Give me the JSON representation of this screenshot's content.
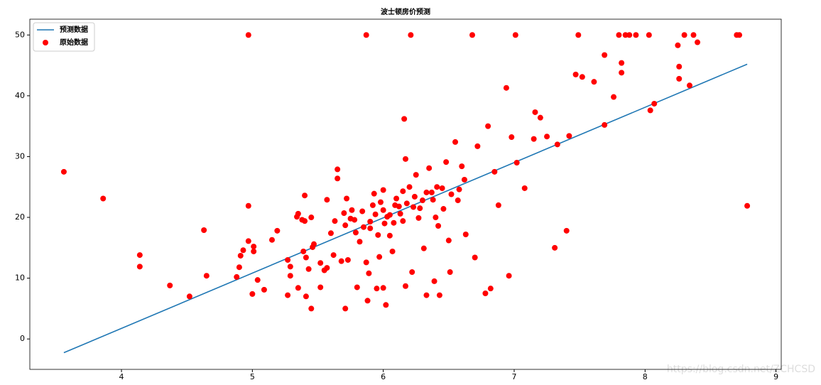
{
  "chart_data": {
    "type": "scatter",
    "title": "波士顿房价预测",
    "xlim": [
      3.3,
      9.04
    ],
    "ylim": [
      -5,
      52.6
    ],
    "xticks": [
      4,
      5,
      6,
      7,
      8,
      9
    ],
    "yticks": [
      0,
      10,
      20,
      30,
      40,
      50
    ],
    "legend": "upper left",
    "series": [
      {
        "name": "预测数据",
        "type": "line",
        "color": "#1f77b4",
        "x": [
          3.56,
          8.78
        ],
        "values": [
          -2.26,
          45.2
        ]
      },
      {
        "name": "原始数据",
        "type": "scatter",
        "color": "#ff0000",
        "x": [
          3.56,
          3.86,
          4.14,
          4.14,
          4.37,
          4.52,
          4.63,
          4.65,
          4.88,
          4.9,
          4.91,
          4.93,
          4.97,
          4.97,
          4.97,
          5.0,
          5.01,
          5.01,
          5.04,
          5.09,
          5.15,
          5.19,
          5.27,
          5.27,
          5.29,
          5.29,
          5.34,
          5.35,
          5.35,
          5.38,
          5.39,
          5.4,
          5.4,
          5.41,
          5.41,
          5.43,
          5.45,
          5.45,
          5.46,
          5.47,
          5.52,
          5.52,
          5.55,
          5.57,
          5.57,
          5.6,
          5.62,
          5.63,
          5.65,
          5.65,
          5.68,
          5.7,
          5.71,
          5.71,
          5.72,
          5.73,
          5.76,
          5.78,
          5.8,
          5.82,
          5.85,
          5.87,
          5.87,
          5.88,
          5.89,
          5.9,
          5.92,
          5.93,
          5.95,
          5.96,
          5.97,
          6.0,
          6.0,
          6.0,
          6.02,
          6.03,
          6.05,
          6.07,
          6.1,
          6.13,
          6.15,
          6.15,
          6.16,
          6.17,
          6.17,
          6.2,
          6.21,
          6.22,
          6.23,
          6.25,
          6.27,
          6.3,
          6.31,
          6.33,
          6.35,
          6.37,
          6.39,
          6.4,
          6.42,
          6.43,
          6.45,
          6.48,
          6.5,
          6.51,
          6.55,
          6.57,
          6.6,
          6.63,
          6.68,
          6.7,
          6.72,
          6.78,
          6.8,
          6.82,
          6.85,
          6.88,
          6.94,
          6.96,
          6.98,
          7.01,
          7.02,
          7.08,
          7.15,
          7.16,
          7.2,
          7.25,
          7.31,
          7.33,
          7.4,
          7.42,
          7.47,
          7.49,
          7.52,
          7.61,
          7.69,
          7.69,
          7.76,
          7.8,
          7.82,
          7.82,
          7.85,
          7.88,
          7.93,
          8.03,
          8.04,
          8.07,
          8.25,
          8.26,
          8.26,
          8.3,
          8.34,
          8.37,
          8.4,
          8.7,
          8.72,
          8.78,
          5.75,
          5.84,
          5.9,
          5.98,
          6.05,
          6.08,
          6.12,
          6.18,
          6.24,
          6.28,
          6.33,
          6.38,
          6.41,
          6.46,
          6.52,
          6.58,
          6.62,
          5.79,
          5.94,
          6.01,
          6.09
        ],
        "values": [
          27.5,
          23.1,
          13.8,
          11.9,
          8.8,
          7.0,
          17.9,
          10.4,
          10.2,
          11.8,
          13.7,
          14.6,
          50,
          21.9,
          16.1,
          7.4,
          15.2,
          14.4,
          9.7,
          8.1,
          16.3,
          17.8,
          13.0,
          7.2,
          10.4,
          11.9,
          20.1,
          20.6,
          8.4,
          19.6,
          14.4,
          19.4,
          23.6,
          7.0,
          13.4,
          11.5,
          5.0,
          20.0,
          15.1,
          15.6,
          12.5,
          8.5,
          11.3,
          11.7,
          22.9,
          17.4,
          13.8,
          19.4,
          26.4,
          27.9,
          12.8,
          20.7,
          5.0,
          18.7,
          23.1,
          13.0,
          21.2,
          19.6,
          8.5,
          16.0,
          18.4,
          12.6,
          50,
          6.3,
          10.8,
          19.3,
          22.0,
          23.9,
          8.3,
          17.1,
          13.5,
          8.4,
          21.2,
          24.5,
          5.6,
          20.1,
          17.0,
          14.4,
          23.1,
          20.6,
          24.3,
          19.4,
          36.2,
          8.7,
          29.6,
          25.0,
          50,
          11.0,
          21.7,
          27.0,
          19.9,
          22.8,
          14.9,
          7.2,
          28.1,
          24.1,
          9.5,
          20.0,
          18.6,
          7.2,
          24.8,
          29.1,
          16.2,
          11.0,
          32.4,
          22.8,
          28.4,
          17.2,
          50,
          13.4,
          31.7,
          7.5,
          35.0,
          8.3,
          27.5,
          22.0,
          41.3,
          10.4,
          33.2,
          50,
          29.0,
          24.8,
          32.9,
          37.3,
          36.4,
          33.3,
          15.0,
          32.0,
          17.8,
          33.4,
          43.5,
          50,
          43.1,
          42.3,
          46.7,
          35.2,
          39.8,
          50,
          45.4,
          43.8,
          50,
          50,
          50,
          50,
          37.6,
          38.7,
          48.3,
          42.8,
          44.8,
          50,
          41.7,
          50,
          48.8,
          50,
          50,
          21.9,
          19.8,
          21.0,
          18.2,
          22.5,
          20.4,
          19.1,
          21.8,
          22.3,
          23.4,
          21.5,
          24.1,
          22.9,
          25.0,
          21.4,
          23.8,
          24.6,
          26.2,
          17.5,
          20.5,
          19.0,
          22.0
        ]
      }
    ],
    "watermark": "https://blog.csdn.net/ZCHCSD"
  }
}
